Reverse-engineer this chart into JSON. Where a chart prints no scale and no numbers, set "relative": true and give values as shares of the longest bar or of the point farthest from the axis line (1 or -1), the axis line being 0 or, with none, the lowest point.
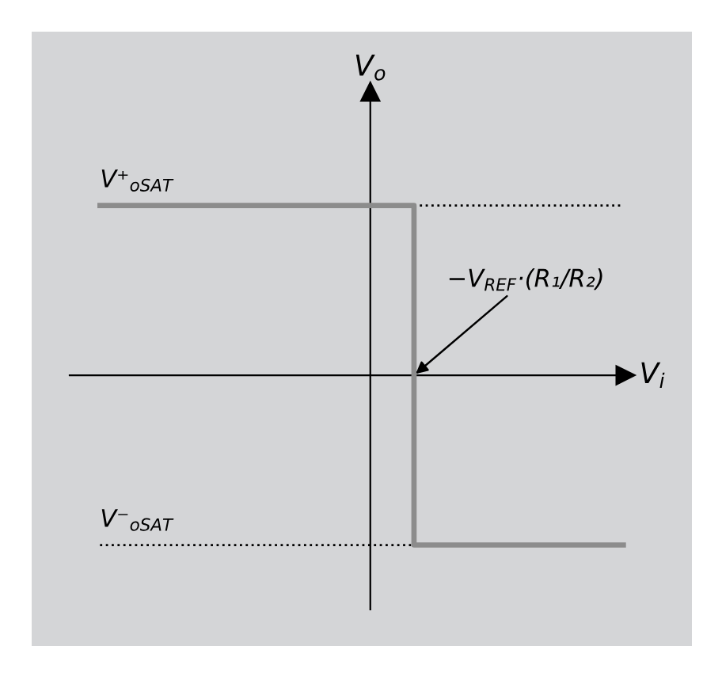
{
  "chart_data": {
    "type": "step",
    "relative": true,
    "xlabel": "V$_{i}$",
    "ylabel": "V$_{o}$",
    "categories": [
      null,
      null,
      null,
      null,
      null,
      null
    ],
    "series": [
      {
        "color": "#8c8c8c",
        "values": [
          1,
          1,
          1,
          -1,
          -1,
          -1
        ]
      },
      {
        "type": "line",
        "color": "#000000",
        "line_style": "dotted",
        "values": [
          null,
          null,
          null,
          1,
          1,
          1
        ]
      },
      {
        "type": "line",
        "color": "#000000",
        "line_style": "dotted",
        "values": [
          -1,
          -1,
          -1,
          -1,
          null,
          null
        ]
      }
    ],
    "annotations": [
      {
        "text": "V⁺$_{oSAT}$",
        "y": 1
      },
      {
        "text": "V⁻$_{oSAT}$",
        "y": -1
      },
      "−V$_{REF}$·(R₁/R₂)"
    ]
  }
}
